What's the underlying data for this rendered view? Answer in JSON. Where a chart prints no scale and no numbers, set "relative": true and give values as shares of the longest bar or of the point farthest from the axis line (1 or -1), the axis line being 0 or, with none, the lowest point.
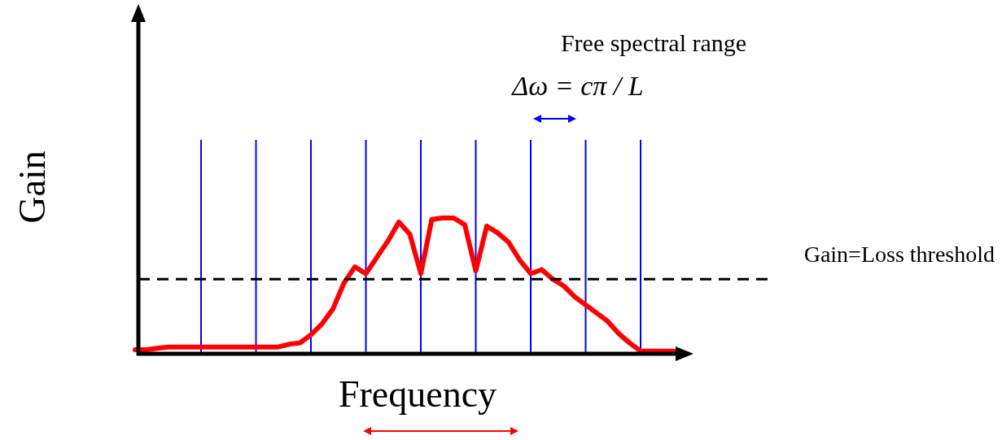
{
  "chart_data": {
    "type": "line",
    "relative": true,
    "xlabel": "Frequency",
    "ylabel": "Gain",
    "annotations": [
      "Free spectral range",
      "Δω = cπ / L"
    ],
    "categories": [
      null,
      null,
      null,
      null,
      null,
      null,
      null,
      null,
      null,
      null,
      null,
      null,
      null,
      null,
      null,
      null,
      null,
      null,
      null,
      null,
      null,
      null,
      null,
      null,
      null,
      null,
      null,
      null,
      null,
      null,
      null,
      null,
      null,
      null,
      null,
      null,
      null,
      null,
      null,
      null,
      null,
      null,
      null,
      null,
      null,
      null,
      null,
      null,
      null,
      null
    ],
    "series": [
      {
        "color": "#ff0000",
        "values": [
          0.03,
          0.03,
          0.04,
          0.05,
          0.05,
          0.05,
          0.05,
          0.05,
          0.05,
          0.05,
          0.05,
          0.05,
          0.05,
          0.05,
          0.07,
          0.08,
          0.14,
          0.22,
          0.33,
          0.52,
          0.64,
          0.59,
          0.71,
          0.83,
          0.97,
          0.88,
          0.59,
          0.99,
          1,
          1,
          0.95,
          0.61,
          0.94,
          0.89,
          0.82,
          0.69,
          0.59,
          0.62,
          0.55,
          0.5,
          0.42,
          0.36,
          0.3,
          0.24,
          0.15,
          0.08,
          0.02,
          0.02,
          0.02,
          0.02
        ]
      }
    ],
    "grid": "x",
    "ref_lines": [
      {
        "axis": "y",
        "value": 0.55,
        "label": "Gain=Loss threshold",
        "color": "#000000",
        "line_style": "dashed"
      }
    ]
  }
}
